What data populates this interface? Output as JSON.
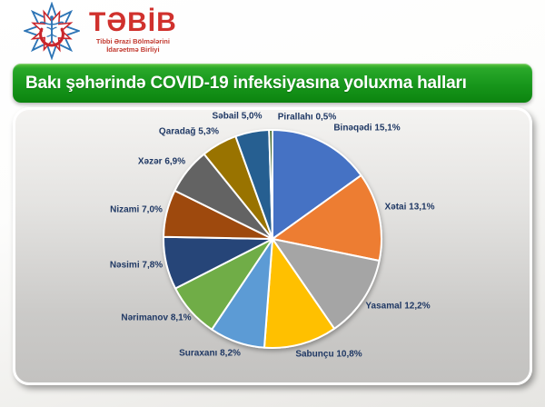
{
  "logo": {
    "brand": "TƏBİB",
    "subtitle_line1": "Tibbi Ərazi Bölmələrini",
    "subtitle_line2": "İdarəetmə Birliyi",
    "brand_color": "#D0312D",
    "subtitle_color": "#C23A30",
    "emblem_icon": "eight-point-star-crescent-caduceus",
    "emblem_blue": "#2E75B6",
    "emblem_red": "#C9252B"
  },
  "header": {
    "title": "Bakı şəhərində COVID-19 infeksiyasına yoluxma halları",
    "background_color": "#17961B",
    "text_color": "#FFFFFF"
  },
  "chart_data": {
    "type": "pie",
    "title": "Bakı şəhərində COVID-19 infeksiyasına yoluxma halları",
    "start_angle_deg": 0,
    "direction": "clockwise",
    "legend": "none",
    "label_color": "#1F3864",
    "slice_border_color": "#FFFFFF",
    "slices": [
      {
        "label": "Binəqədi",
        "value": 15.1,
        "display": "Binəqədi 15,1%",
        "color": "#4472C4"
      },
      {
        "label": "Xətai",
        "value": 13.1,
        "display": "Xətai 13,1%",
        "color": "#ED7D31"
      },
      {
        "label": "Yasamal",
        "value": 12.2,
        "display": "Yasamal 12,2%",
        "color": "#A5A5A5"
      },
      {
        "label": "Sabunçu",
        "value": 10.8,
        "display": "Sabunçu 10,8%",
        "color": "#FFC000"
      },
      {
        "label": "Suraxanı",
        "value": 8.2,
        "display": "Suraxanı 8,2%",
        "color": "#5B9BD5"
      },
      {
        "label": "Nərimanov",
        "value": 8.1,
        "display": "Nərimanov 8,1%",
        "color": "#70AD47"
      },
      {
        "label": "Nəsimi",
        "value": 7.8,
        "display": "Nəsimi 7,8%",
        "color": "#264478"
      },
      {
        "label": "Nizami",
        "value": 7.0,
        "display": "Nizami 7,0%",
        "color": "#9E480E"
      },
      {
        "label": "Xəzər",
        "value": 6.9,
        "display": "Xəzər 6,9%",
        "color": "#636363"
      },
      {
        "label": "Qaradağ",
        "value": 5.3,
        "display": "Qaradağ 5,3%",
        "color": "#997300"
      },
      {
        "label": "Səbail",
        "value": 5.0,
        "display": "Səbail 5,0%",
        "color": "#255E91"
      },
      {
        "label": "Pirallahı",
        "value": 0.5,
        "display": "Pirallahı 0,5%",
        "color": "#43682B"
      }
    ]
  }
}
